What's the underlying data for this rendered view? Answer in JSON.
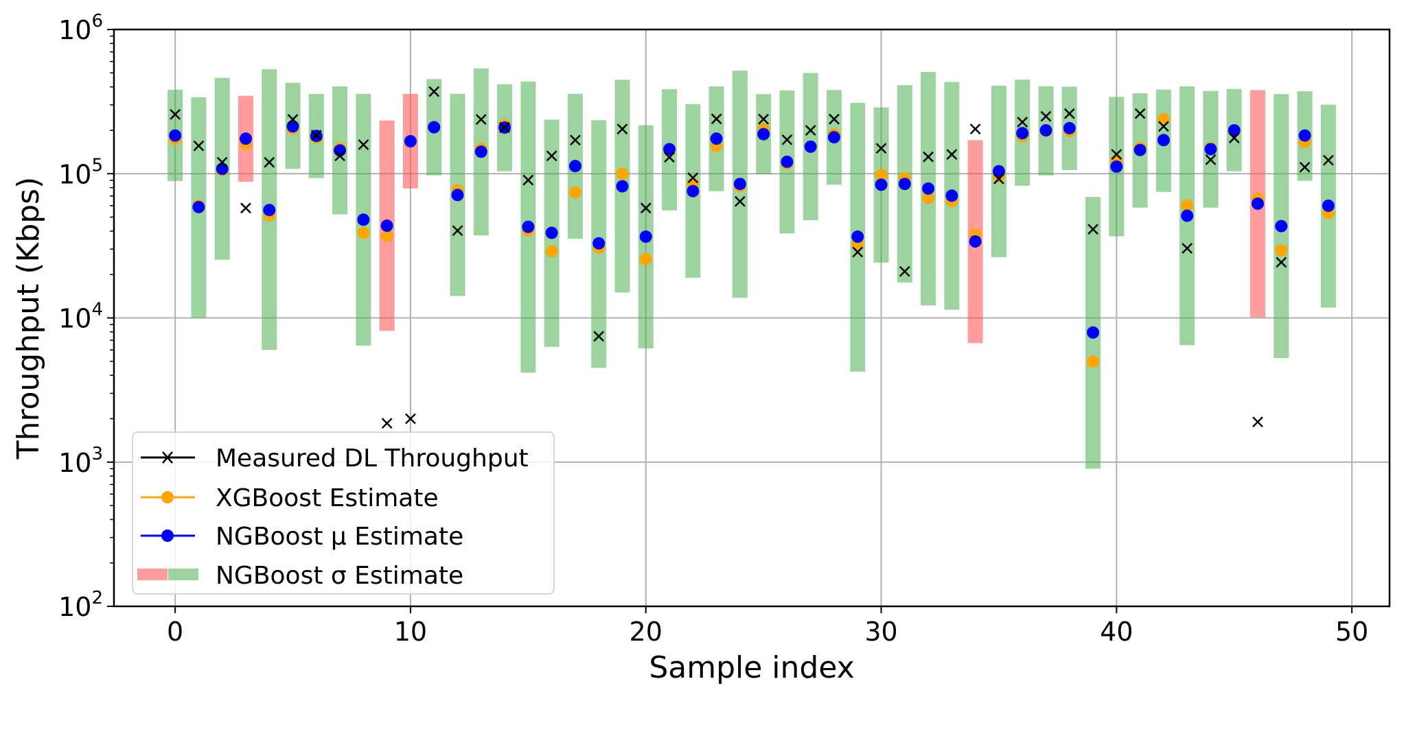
{
  "chart_data": {
    "type": "scatter",
    "title": "",
    "xlabel": "Sample index",
    "ylabel": "Throughput (Kbps)",
    "yscale": "log",
    "xlim": [
      -2.6,
      51.6
    ],
    "ylim": [
      100,
      1000000
    ],
    "xticks": [
      0,
      10,
      20,
      30,
      40,
      50
    ],
    "xtick_labels": [
      "0",
      "10",
      "20",
      "30",
      "40",
      "50"
    ],
    "yticks": [
      100,
      1000,
      10000,
      100000,
      1000000
    ],
    "ytick_labels": [
      {
        "base": "10",
        "exp": "2"
      },
      {
        "base": "10",
        "exp": "3"
      },
      {
        "base": "10",
        "exp": "4"
      },
      {
        "base": "10",
        "exp": "5"
      },
      {
        "base": "10",
        "exp": "6"
      }
    ],
    "grid": true,
    "legend_position": "lower-left",
    "colors": {
      "measured": "#000000",
      "xgboost": "#ffa500",
      "ngboost_mu": "#0000ff",
      "sigma_in": "#4caf50",
      "sigma_out": "#ff4d4d",
      "grid": "#b0b0b0"
    },
    "legend": [
      {
        "label": "Measured DL Throughput",
        "marker": "x",
        "color": "#000000"
      },
      {
        "label": "XGBoost Estimate",
        "marker": "o",
        "color": "#ffa500"
      },
      {
        "label": "NGBoost μ Estimate",
        "marker": "o",
        "color": "#0000ff"
      },
      {
        "label": "NGBoost σ Estimate",
        "marker": "band",
        "color": "#ff4d4d|#4caf50"
      }
    ],
    "x": [
      0,
      1,
      2,
      3,
      4,
      5,
      6,
      7,
      8,
      9,
      10,
      11,
      12,
      13,
      14,
      15,
      16,
      17,
      18,
      19,
      20,
      21,
      22,
      23,
      24,
      25,
      26,
      27,
      28,
      29,
      30,
      31,
      32,
      33,
      34,
      35,
      36,
      37,
      38,
      39,
      40,
      41,
      42,
      43,
      44,
      45,
      46,
      47,
      48,
      49
    ],
    "series": [
      {
        "name": "Measured DL Throughput",
        "values": [
          258000,
          156000,
          120000,
          57800,
          120000,
          238000,
          185000,
          133000,
          159000,
          1860,
          2000,
          371000,
          40300,
          238000,
          209000,
          90300,
          133000,
          171000,
          7460,
          204000,
          57800,
          130000,
          93600,
          240000,
          64300,
          239000,
          172000,
          200000,
          239000,
          28600,
          150000,
          21000,
          131000,
          136000,
          204000,
          92000,
          228000,
          250000,
          261000,
          41200,
          136000,
          261000,
          213000,
          30400,
          125000,
          177000,
          1900,
          24300,
          111000,
          124000
        ]
      },
      {
        "name": "XGBoost Estimate",
        "values": [
          174000,
          60000,
          106000,
          160000,
          51300,
          205000,
          178000,
          150000,
          38900,
          37100,
          168000,
          210000,
          76700,
          149000,
          217000,
          40400,
          29000,
          74200,
          30700,
          100000,
          25600,
          145000,
          84900,
          156000,
          82000,
          203000,
          118000,
          154000,
          187000,
          32400,
          97800,
          93000,
          68100,
          64600,
          37900,
          96000,
          182000,
          198000,
          198000,
          4970,
          123000,
          151000,
          239000,
          60200,
          150000,
          198000,
          67100,
          29400,
          166000,
          53300
        ]
      },
      {
        "name": "NGBoost μ Estimate",
        "values": [
          184000,
          58700,
          108000,
          175000,
          56000,
          213000,
          183000,
          145000,
          48000,
          43600,
          168000,
          210000,
          71200,
          142000,
          209000,
          42800,
          38900,
          113000,
          32900,
          81800,
          36600,
          148000,
          75700,
          175000,
          84900,
          188000,
          121000,
          154000,
          179000,
          36600,
          83900,
          84900,
          78900,
          70400,
          33900,
          104000,
          191000,
          200000,
          207000,
          7920,
          112000,
          146000,
          171000,
          51100,
          148000,
          200000,
          62000,
          43300,
          184000,
          60000
        ]
      },
      {
        "name": "NGBoost σ Estimate (upper)",
        "values": [
          382000,
          339000,
          462000,
          347000,
          530000,
          427000,
          357000,
          403000,
          358000,
          234000,
          358000,
          453000,
          358000,
          537000,
          417000,
          435000,
          237000,
          358000,
          235000,
          448000,
          217000,
          385000,
          304000,
          403000,
          518000,
          356000,
          378000,
          499000,
          380000,
          310000,
          288000,
          411000,
          507000,
          433000,
          171000,
          407000,
          449000,
          404000,
          401000,
          69000,
          341000,
          361000,
          383000,
          403000,
          375000,
          387000,
          380000,
          356000,
          373000,
          301000
        ]
      },
      {
        "name": "NGBoost σ Estimate (lower)",
        "values": [
          89000,
          10000,
          25300,
          88000,
          6000,
          108000,
          93300,
          52200,
          6430,
          8130,
          79000,
          97400,
          14200,
          37300,
          104000,
          4170,
          6300,
          35400,
          4500,
          15000,
          6150,
          55700,
          19000,
          75700,
          13800,
          99000,
          38500,
          47600,
          83900,
          4240,
          24200,
          17600,
          12200,
          11400,
          6680,
          26400,
          82500,
          97300,
          106000,
          900,
          36800,
          58200,
          74800,
          6470,
          58200,
          104000,
          10100,
          5260,
          89300,
          11800
        ]
      },
      {
        "name": "NGBoost σ band flag",
        "values": [
          "in",
          "in",
          "in",
          "out",
          "in",
          "in",
          "in",
          "in",
          "in",
          "out",
          "out",
          "in",
          "in",
          "in",
          "in",
          "in",
          "in",
          "in",
          "in",
          "in",
          "in",
          "in",
          "in",
          "in",
          "in",
          "in",
          "in",
          "in",
          "in",
          "in",
          "in",
          "in",
          "in",
          "in",
          "out",
          "in",
          "in",
          "in",
          "in",
          "in",
          "in",
          "in",
          "in",
          "in",
          "in",
          "in",
          "out",
          "in",
          "in",
          "in"
        ]
      }
    ]
  }
}
